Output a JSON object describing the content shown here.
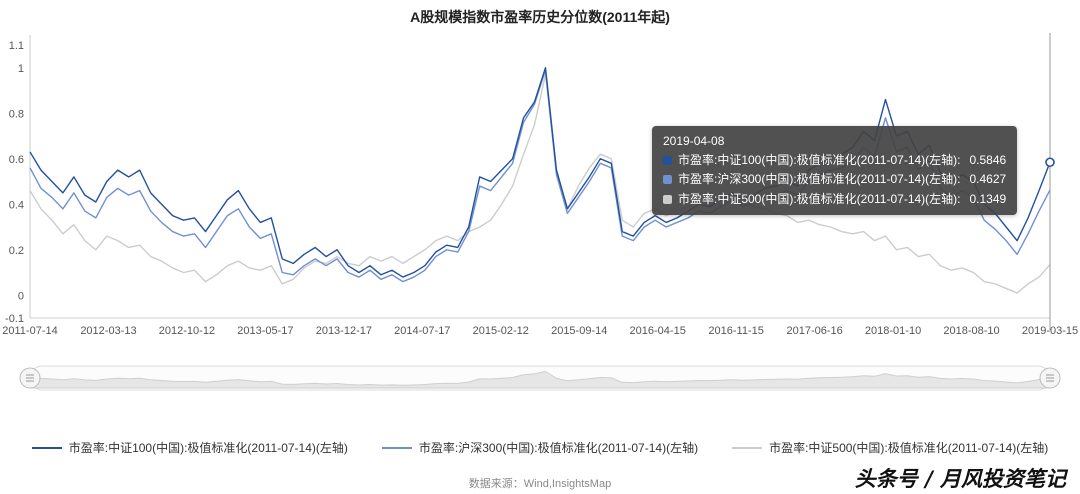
{
  "page": {
    "title": "A股规模指数市盈率历史分位数(2011年起)",
    "source": "数据来源：Wind,InsightsMap",
    "watermark": "头条号 / 月风投资笔记"
  },
  "tooltip": {
    "date": "2019-04-08",
    "rows": [
      {
        "label": "市盈率:中证100(中国):极值标准化(2011-07-14)(左轴):",
        "value": "0.5846",
        "color": "#23519e"
      },
      {
        "label": "市盈率:沪深300(中国):极值标准化(2011-07-14)(左轴):",
        "value": "0.4627",
        "color": "#7190d0"
      },
      {
        "label": "市盈率:中证500(中国):极值标准化(2011-07-14)(左轴):",
        "value": "0.1349",
        "color": "#cccccc"
      }
    ]
  },
  "chart_data": {
    "type": "line",
    "title": "A股规模指数市盈率历史分位数(2011年起)",
    "xlabel": "",
    "ylabel": "",
    "grid": false,
    "legend_position": "bottom",
    "ylim": [
      -0.1,
      1.1
    ],
    "y_ticks": [
      -0.1,
      0,
      0.2,
      0.4,
      0.6,
      0.8,
      1,
      1.1
    ],
    "x_ticks": [
      "2011-07-14",
      "2012-03-13",
      "2012-10-12",
      "2013-05-17",
      "2013-12-17",
      "2014-07-17",
      "2015-02-12",
      "2015-09-14",
      "2016-04-15",
      "2016-11-15",
      "2017-06-16",
      "2018-01-10",
      "2018-08-10",
      "2019-03-15"
    ],
    "series": [
      {
        "name": "市盈率:中证100(中国):极值标准化(2011-07-14)(左轴)",
        "color": "#23519e",
        "values": [
          0.63,
          0.55,
          0.5,
          0.45,
          0.52,
          0.44,
          0.41,
          0.5,
          0.55,
          0.52,
          0.55,
          0.45,
          0.4,
          0.35,
          0.33,
          0.34,
          0.28,
          0.35,
          0.42,
          0.46,
          0.38,
          0.32,
          0.34,
          0.16,
          0.14,
          0.18,
          0.21,
          0.17,
          0.2,
          0.13,
          0.1,
          0.13,
          0.09,
          0.11,
          0.08,
          0.1,
          0.13,
          0.19,
          0.22,
          0.21,
          0.3,
          0.52,
          0.5,
          0.55,
          0.6,
          0.78,
          0.85,
          1.0,
          0.55,
          0.38,
          0.45,
          0.52,
          0.6,
          0.58,
          0.28,
          0.26,
          0.32,
          0.35,
          0.32,
          0.34,
          0.37,
          0.4,
          0.39,
          0.42,
          0.45,
          0.42,
          0.44,
          0.47,
          0.48,
          0.5,
          0.48,
          0.55,
          0.58,
          0.6,
          0.62,
          0.65,
          0.72,
          0.68,
          0.86,
          0.7,
          0.72,
          0.62,
          0.66,
          0.54,
          0.5,
          0.53,
          0.5,
          0.4,
          0.36,
          0.3,
          0.24,
          0.34,
          0.46,
          0.5846
        ]
      },
      {
        "name": "市盈率:沪深300(中国):极值标准化(2011-07-14)(左轴)",
        "color": "#7190d0",
        "values": [
          0.56,
          0.47,
          0.43,
          0.38,
          0.45,
          0.37,
          0.34,
          0.43,
          0.47,
          0.44,
          0.46,
          0.37,
          0.32,
          0.28,
          0.26,
          0.27,
          0.21,
          0.28,
          0.35,
          0.38,
          0.3,
          0.25,
          0.27,
          0.1,
          0.09,
          0.13,
          0.16,
          0.13,
          0.16,
          0.1,
          0.08,
          0.11,
          0.07,
          0.09,
          0.06,
          0.08,
          0.11,
          0.17,
          0.2,
          0.19,
          0.28,
          0.48,
          0.46,
          0.52,
          0.58,
          0.76,
          0.84,
          0.99,
          0.53,
          0.36,
          0.43,
          0.5,
          0.58,
          0.56,
          0.26,
          0.24,
          0.3,
          0.33,
          0.3,
          0.32,
          0.34,
          0.37,
          0.36,
          0.39,
          0.42,
          0.39,
          0.41,
          0.43,
          0.44,
          0.46,
          0.44,
          0.5,
          0.53,
          0.55,
          0.56,
          0.59,
          0.65,
          0.61,
          0.78,
          0.63,
          0.65,
          0.55,
          0.59,
          0.47,
          0.43,
          0.46,
          0.43,
          0.33,
          0.29,
          0.24,
          0.18,
          0.27,
          0.37,
          0.4627
        ]
      },
      {
        "name": "市盈率:中证500(中国):极值标准化(2011-07-14)(左轴)",
        "color": "#cccccc",
        "values": [
          0.46,
          0.38,
          0.33,
          0.27,
          0.31,
          0.24,
          0.2,
          0.26,
          0.24,
          0.21,
          0.22,
          0.17,
          0.15,
          0.12,
          0.1,
          0.11,
          0.06,
          0.09,
          0.13,
          0.15,
          0.12,
          0.11,
          0.13,
          0.05,
          0.07,
          0.12,
          0.15,
          0.14,
          0.17,
          0.14,
          0.13,
          0.17,
          0.15,
          0.17,
          0.14,
          0.17,
          0.2,
          0.24,
          0.26,
          0.24,
          0.28,
          0.3,
          0.33,
          0.4,
          0.48,
          0.62,
          0.75,
          0.97,
          0.55,
          0.38,
          0.48,
          0.56,
          0.62,
          0.6,
          0.33,
          0.3,
          0.36,
          0.38,
          0.35,
          0.37,
          0.39,
          0.41,
          0.4,
          0.42,
          0.44,
          0.4,
          0.39,
          0.38,
          0.36,
          0.35,
          0.32,
          0.33,
          0.31,
          0.3,
          0.28,
          0.27,
          0.28,
          0.24,
          0.26,
          0.2,
          0.21,
          0.17,
          0.18,
          0.13,
          0.11,
          0.12,
          0.1,
          0.06,
          0.05,
          0.03,
          0.01,
          0.05,
          0.08,
          0.1349
        ]
      }
    ],
    "end_marker": {
      "series": 0,
      "value": 0.5846
    }
  }
}
